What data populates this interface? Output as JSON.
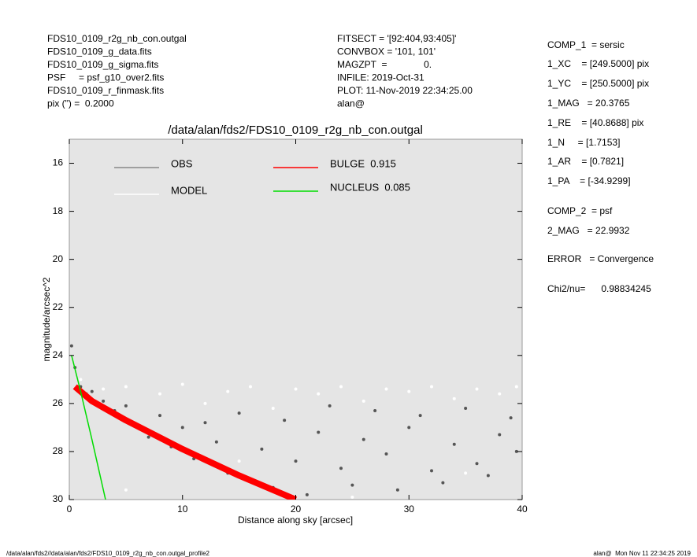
{
  "header": {
    "left": [
      "FDS10_0109_r2g_nb_con.outgal",
      "FDS10_0109_g_data.fits",
      "FDS10_0109_g_sigma.fits",
      "PSF     = psf_g10_over2.fits",
      "FDS10_0109_r_finmask.fits",
      "pix (\") =  0.2000"
    ],
    "middle": [
      "FITSECT = '[92:404,93:405]'",
      "CONVBOX = '101, 101'",
      "MAGZPT  =              0.",
      "INFILE: 2019-Oct-31",
      "PLOT: 11-Nov-2019 22:34:25.00",
      "alan@"
    ],
    "right": [
      "COMP_1  = sersic",
      "1_XC    = [249.5000] pix",
      "1_YC    = [250.5000] pix",
      "1_MAG   = 20.3765",
      "1_RE    = [40.8688] pix",
      "1_N     = [1.7153]",
      "1_AR    = [0.7821]",
      "1_PA    = [-34.9299]",
      "COMP_2  = psf",
      "2_MAG   = 22.9932",
      "ERROR   = Convergence",
      "Chi2/nu=      0.98834245"
    ]
  },
  "footer": {
    "left": "/data/alan/fds2//data/alan/fds2/FDS10_0109_r2g_nb_con.outgal_profile2",
    "right": "alan@  Mon Nov 11 22:34:25 2019"
  },
  "chart_data": {
    "type": "scatter",
    "title": "/data/alan/fds2/FDS10_0109_r2g_nb_con.outgal",
    "xlabel": "Distance along sky [arcsec]",
    "ylabel": "magnitude/arcsec^2",
    "xlim": [
      0,
      40
    ],
    "xticks": [
      0,
      10,
      20,
      30,
      40
    ],
    "ylim": [
      30,
      15
    ],
    "yticks": [
      16,
      18,
      20,
      22,
      24,
      26,
      28,
      30
    ],
    "series": [
      {
        "name": "OBS",
        "type": "scatter",
        "color": "#555555",
        "legend_color": "#888888",
        "x": [
          0.2,
          0.5,
          1,
          1.5,
          2,
          3,
          4,
          5,
          6,
          7,
          8,
          9,
          10,
          11,
          12,
          13,
          14,
          15,
          16,
          17,
          18,
          19,
          20,
          21,
          22,
          23,
          24,
          25,
          26,
          27,
          28,
          29,
          30,
          31,
          32,
          33,
          34,
          35,
          36,
          37,
          38,
          39,
          39.5
        ],
        "values": [
          23.6,
          24.5,
          25.3,
          25.6,
          25.5,
          25.9,
          26.3,
          26.1,
          26.9,
          27.4,
          26.5,
          27.8,
          27.0,
          28.3,
          26.8,
          27.6,
          28.9,
          26.4,
          29.2,
          27.9,
          29.5,
          26.7,
          28.4,
          29.8,
          27.2,
          26.1,
          28.7,
          29.4,
          27.5,
          26.3,
          28.1,
          29.6,
          27.0,
          26.5,
          28.8,
          29.3,
          27.7,
          26.2,
          28.5,
          29.0,
          27.3,
          26.6,
          28.0
        ]
      },
      {
        "name": "MODEL",
        "type": "scatter",
        "color": "#ffffff",
        "legend_color": "#ffffff",
        "x": [
          1,
          3,
          5,
          8,
          10,
          12,
          14,
          16,
          18,
          20,
          22,
          24,
          26,
          28,
          30,
          32,
          34,
          36,
          38,
          39.5,
          5,
          15,
          25,
          35
        ],
        "values": [
          25.0,
          25.4,
          25.3,
          25.6,
          25.2,
          26.0,
          25.5,
          25.3,
          26.2,
          25.4,
          25.6,
          25.3,
          25.9,
          25.4,
          25.5,
          25.3,
          25.8,
          25.4,
          25.6,
          25.3,
          29.6,
          28.4,
          29.9,
          28.9
        ]
      },
      {
        "name": "BULGE  0.915",
        "type": "line",
        "color": "#ff0000",
        "legend_color": "#ff0000",
        "x": [
          0.5,
          2,
          5,
          10,
          15,
          20
        ],
        "values": [
          25.3,
          25.9,
          26.7,
          27.9,
          29.0,
          30.0
        ]
      },
      {
        "name": "NUCLEUS  0.085",
        "type": "line",
        "color": "#00dd00",
        "legend_color": "#00dd00",
        "x": [
          0.2,
          1,
          2,
          3.2
        ],
        "values": [
          24.0,
          25.5,
          27.5,
          30.0
        ]
      }
    ]
  }
}
